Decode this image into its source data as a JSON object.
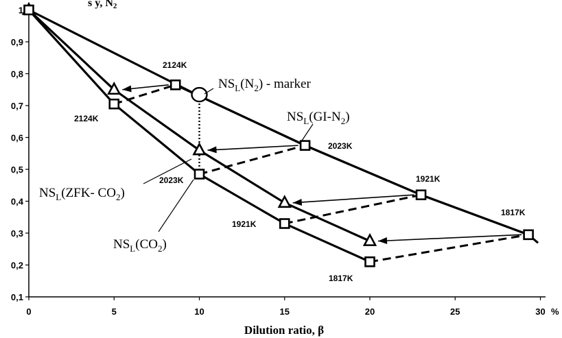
{
  "chart_data": {
    "type": "line",
    "xlabel": "Dilution ratio, β",
    "x_unit": "%",
    "xlim": [
      0,
      30
    ],
    "ylim": [
      0.1,
      1.0
    ],
    "x_ticks": [
      0,
      5,
      10,
      15,
      20,
      25,
      30
    ],
    "y_ticks": [
      0.1,
      0.2,
      0.3,
      0.4,
      0.5,
      0.6,
      0.7,
      0.8,
      0.9,
      1.0
    ],
    "y_tick_labels": [
      "0,1",
      "0,2",
      "0,3",
      "0,4",
      "0,5",
      "0,6",
      "0,7",
      "0,8",
      "0,9",
      "1"
    ],
    "series": [
      {
        "key": "n2",
        "name": "NS_L(N_2) - marker",
        "marker": "none",
        "points": [
          [
            0,
            1.0
          ],
          [
            10,
            0.73
          ],
          [
            16.2,
            0.575
          ],
          [
            23,
            0.42
          ],
          [
            29.3,
            0.295
          ]
        ]
      },
      {
        "key": "gi",
        "name": "NS_L(GI-N_2)",
        "marker": "square",
        "points": [
          [
            8.6,
            0.765
          ],
          [
            16.2,
            0.575
          ],
          [
            23,
            0.42
          ],
          [
            29.3,
            0.295
          ]
        ]
      },
      {
        "key": "zfk",
        "name": "NS_L(ZFK- CO_2)",
        "marker": "triangle",
        "points": [
          [
            0,
            1.0
          ],
          [
            5,
            0.75
          ],
          [
            10,
            0.56
          ],
          [
            15,
            0.395
          ],
          [
            20,
            0.275
          ]
        ]
      },
      {
        "key": "co2",
        "name": "NS_L(CO_2)",
        "marker": "square",
        "points": [
          [
            0,
            1.0
          ],
          [
            5,
            0.705
          ],
          [
            10,
            0.485
          ],
          [
            15,
            0.33
          ],
          [
            20,
            0.21
          ]
        ]
      }
    ],
    "dashed_links": [
      [
        [
          5,
          0.705
        ],
        [
          8.6,
          0.765
        ]
      ],
      [
        [
          10,
          0.485
        ],
        [
          16.2,
          0.575
        ]
      ],
      [
        [
          15,
          0.33
        ],
        [
          23,
          0.42
        ]
      ],
      [
        [
          20,
          0.21
        ],
        [
          29.3,
          0.295
        ]
      ]
    ],
    "arrows": [
      {
        "from": [
          8.6,
          0.765
        ],
        "to": [
          5,
          0.75
        ]
      },
      {
        "from": [
          16.2,
          0.575
        ],
        "to": [
          10,
          0.56
        ]
      },
      {
        "from": [
          23,
          0.42
        ],
        "to": [
          15,
          0.395
        ]
      },
      {
        "from": [
          29.3,
          0.295
        ],
        "to": [
          20,
          0.275
        ]
      }
    ],
    "dotted_link": [
      [
        10,
        0.73
      ],
      [
        10,
        0.485
      ]
    ],
    "circle_marker": [
      10,
      0.73
    ],
    "temperature_labels": [
      "2124K",
      "2124K",
      "2023K",
      "2023K",
      "1921K",
      "1921K",
      "1817K",
      "1817K"
    ],
    "annotations": {
      "n2": {
        "main": "NS",
        "sub": "L",
        "tail": "(N",
        "sub2": "2",
        "end": ")  -  marker"
      },
      "gi": {
        "main": "NS",
        "sub": "L",
        "tail": "(GI-N",
        "sub2": "2",
        "end": ")"
      },
      "zfk": {
        "main": "NS",
        "sub": "L",
        "tail": "(ZFK- CO",
        "sub2": "2",
        "end": ")"
      },
      "co2": {
        "main": "NS",
        "sub": "L",
        "tail": "(CO",
        "sub2": "2",
        "end": ")"
      }
    },
    "top_fragment": "s      y, N",
    "top_fragment_sub": "2"
  }
}
